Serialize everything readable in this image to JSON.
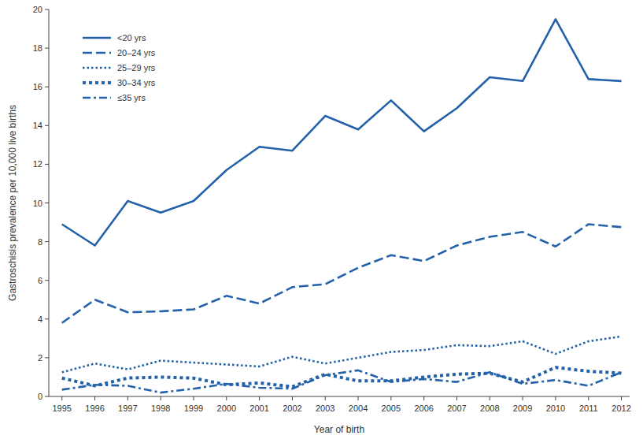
{
  "chart_data": {
    "type": "line",
    "x_label": "Year of birth",
    "y_label": "Gastroschisis prevalence per 10,000 live births",
    "x": [
      1995,
      1996,
      1997,
      1998,
      1999,
      2000,
      2001,
      2002,
      2003,
      2004,
      2005,
      2006,
      2007,
      2008,
      2009,
      2010,
      2011,
      2012
    ],
    "xlim": [
      1994.6,
      2012.25
    ],
    "xticks": [
      1995,
      1996,
      1997,
      1998,
      1999,
      2000,
      2001,
      2002,
      2003,
      2004,
      2005,
      2006,
      2007,
      2008,
      2009,
      2010,
      2011,
      2012
    ],
    "ylim": [
      0,
      20
    ],
    "yticks": [
      0,
      2,
      4,
      6,
      8,
      10,
      12,
      14,
      16,
      18,
      20
    ],
    "grid": false,
    "legend": "upper-left",
    "series": [
      {
        "name": "<20 yrs",
        "color": "#2361a9",
        "line_style": "solid",
        "values": [
          8.9,
          7.8,
          10.1,
          9.5,
          10.1,
          11.7,
          12.9,
          12.7,
          14.5,
          13.8,
          15.3,
          13.7,
          14.9,
          16.5,
          16.3,
          19.5,
          16.4,
          16.3
        ]
      },
      {
        "name": "20–24 yrs",
        "color": "#2361a9",
        "line_style": "dashed",
        "values": [
          3.8,
          5.0,
          4.35,
          4.4,
          4.5,
          5.2,
          4.8,
          5.65,
          5.8,
          6.65,
          7.3,
          7.0,
          7.8,
          8.25,
          8.5,
          7.75,
          8.9,
          8.75
        ]
      },
      {
        "name": "25–29 yrs",
        "color": "#2361a9",
        "line_style": "dotted",
        "values": [
          1.25,
          1.7,
          1.4,
          1.85,
          1.75,
          1.65,
          1.55,
          2.05,
          1.7,
          2.0,
          2.3,
          2.4,
          2.65,
          2.6,
          2.85,
          2.2,
          2.85,
          3.1
        ]
      },
      {
        "name": "30–34 yrs",
        "color": "#2361a9",
        "line_style": "square-dotted",
        "values": [
          0.95,
          0.55,
          0.95,
          1.0,
          0.95,
          0.6,
          0.7,
          0.5,
          1.15,
          0.8,
          0.8,
          1.0,
          1.15,
          1.2,
          0.75,
          1.5,
          1.3,
          1.2
        ]
      },
      {
        "name": "≤35 yrs",
        "color": "#2361a9",
        "line_style": "dash-dot",
        "values": [
          0.35,
          0.6,
          0.55,
          0.2,
          0.4,
          0.65,
          0.45,
          0.4,
          1.1,
          1.35,
          0.75,
          0.9,
          0.75,
          1.25,
          0.65,
          0.85,
          0.55,
          1.25
        ]
      }
    ]
  }
}
